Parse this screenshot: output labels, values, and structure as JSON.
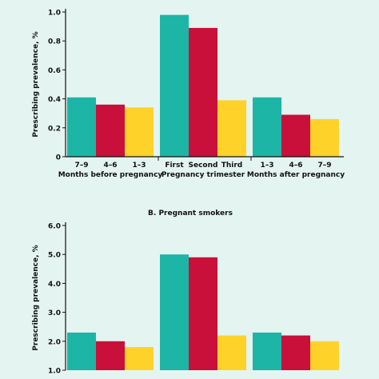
{
  "chart_data": [
    {
      "type": "bar",
      "title": "",
      "ylabel": "Prescribing prevalence, %",
      "ylim": [
        0,
        1.0
      ],
      "yticks": [
        "0",
        "0.2",
        "0.4",
        "0.6",
        "0.8",
        "1.0"
      ],
      "groups": [
        {
          "label": "Months before pregnancy",
          "categories": [
            "7–9",
            "4–6",
            "1–3"
          ],
          "values": [
            0.41,
            0.36,
            0.34
          ]
        },
        {
          "label": "Pregnancy trimester",
          "categories": [
            "First",
            "Second",
            "Third"
          ],
          "values": [
            0.98,
            0.89,
            0.39
          ]
        },
        {
          "label": "Months after pregnancy",
          "categories": [
            "1–3",
            "4–6",
            "7–9"
          ],
          "values": [
            0.41,
            0.29,
            0.26
          ]
        }
      ]
    },
    {
      "type": "bar",
      "title": "B. Pregnant smokers",
      "ylabel": "Prescribing prevalence, %",
      "ylim": [
        1.0,
        6.0
      ],
      "yticks": [
        "1.0",
        "2.0",
        "3.0",
        "4.0",
        "5.0",
        "6.0"
      ],
      "groups": [
        {
          "label": "",
          "categories": [],
          "values": [
            2.3,
            2.0,
            1.8
          ]
        },
        {
          "label": "",
          "categories": [],
          "values": [
            5.0,
            4.9,
            2.2
          ]
        },
        {
          "label": "",
          "categories": [],
          "values": [
            2.3,
            2.2,
            2.0
          ]
        }
      ]
    }
  ],
  "colors": {
    "bar1": "#1db5a6",
    "bar2": "#c8103a",
    "bar3": "#ffd22a",
    "background": "#e4f4f1"
  }
}
